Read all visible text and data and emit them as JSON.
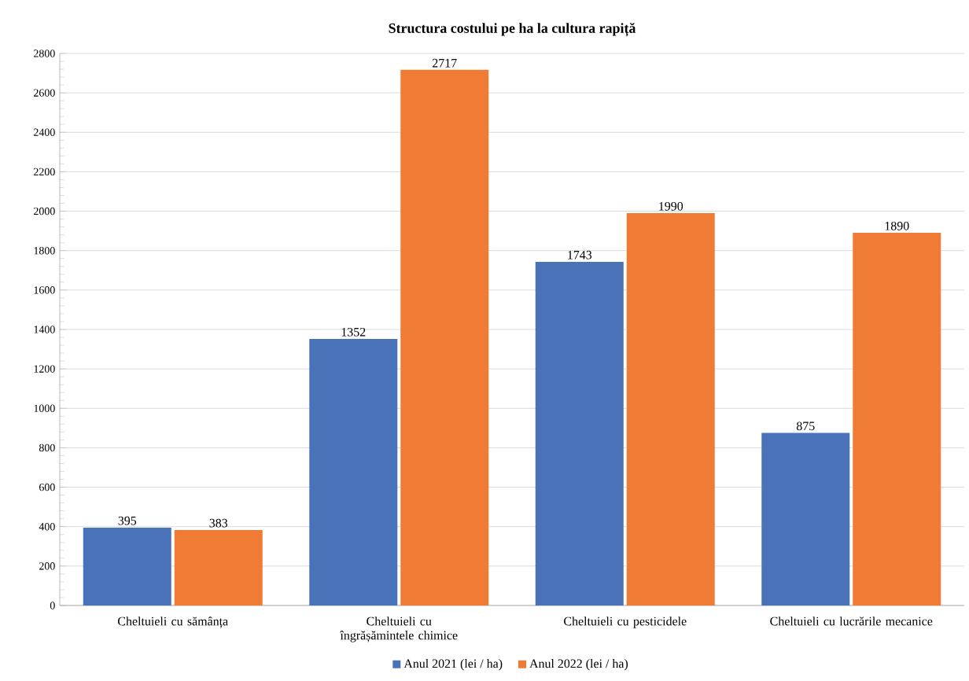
{
  "chart_data": {
    "type": "bar",
    "title": "Structura costului pe ha la cultura rapiță",
    "categories": [
      "Cheltuieli  cu sămânța",
      "Cheltuieli  cu îngrășămintele chimice",
      "Cheltuieli cu pesticidele",
      "Cheltuieli cu lucrările mecanice"
    ],
    "series": [
      {
        "name": "Anul 2021 (lei / ha)",
        "color": "#4a72b8",
        "values": [
          395,
          1352,
          1743,
          875
        ]
      },
      {
        "name": "Anul 2022 (lei / ha)",
        "color": "#f07b35",
        "values": [
          383,
          2717,
          1990,
          1890
        ]
      }
    ],
    "ylim": [
      0,
      2800
    ],
    "yticks": [
      0,
      200,
      400,
      600,
      800,
      1000,
      1200,
      1400,
      1600,
      1800,
      2000,
      2200,
      2400,
      2600,
      2800
    ],
    "grid": "y",
    "legend": "bottom",
    "data_labels": true
  }
}
